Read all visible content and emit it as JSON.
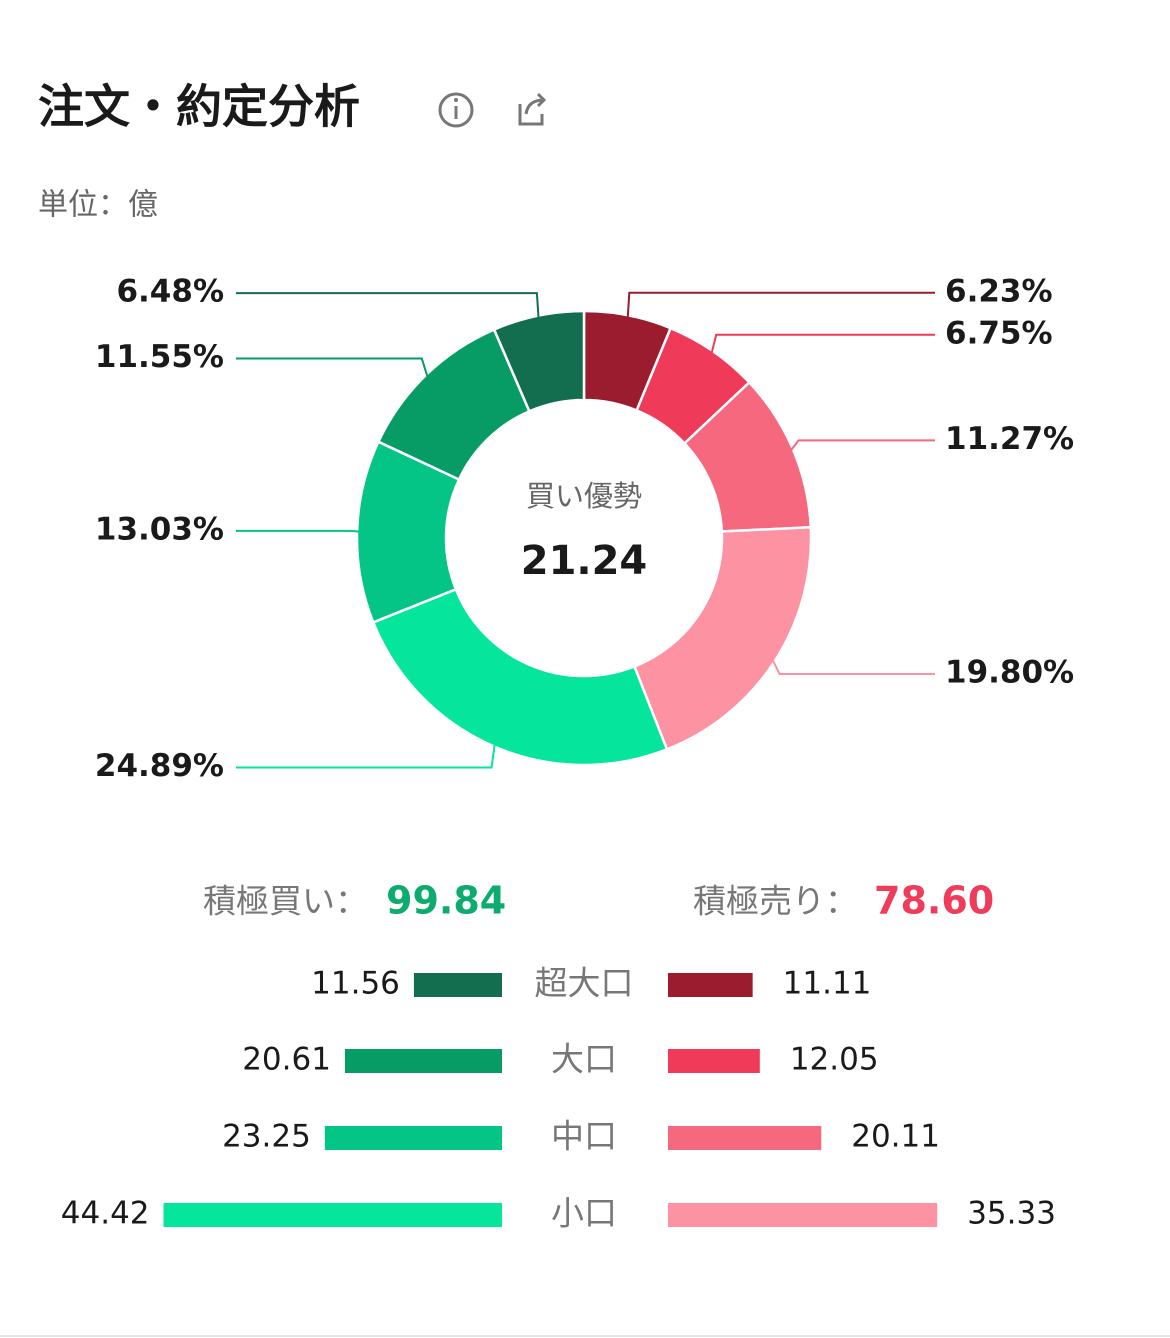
{
  "header": {
    "title": "注文・約定分析",
    "unit": "単位：億"
  },
  "chart_data": [
    {
      "type": "donut",
      "center_label": "買い優勢",
      "center_value": 21.24,
      "values": [
        6.23,
        6.75,
        11.27,
        19.8,
        24.89,
        13.03,
        11.55,
        6.48
      ],
      "value_labels": [
        "6.23%",
        "6.75%",
        "11.27%",
        "19.80%",
        "24.89%",
        "13.03%",
        "11.55%",
        "6.48%"
      ],
      "colors": [
        "#9a1c2e",
        "#ef3a5a",
        "#f5687e",
        "#fd92a2",
        "#05e59b",
        "#04c585",
        "#079b65",
        "#136e4f"
      ]
    },
    {
      "type": "butterfly",
      "categories": [
        "超大口",
        "大口",
        "中口",
        "小口"
      ],
      "series": [
        {
          "name": "積極買い：",
          "total": 99.84,
          "color": "#0bac6e",
          "colors": [
            "#136e4f",
            "#079b65",
            "#04c585",
            "#05e59b"
          ],
          "values": [
            11.56,
            20.61,
            23.25,
            44.42
          ]
        },
        {
          "name": "積極売り：",
          "total": {
            "value": 78.6,
            "label": "78.60"
          },
          "color": "#f03c5b",
          "colors": [
            "#9a1c2e",
            "#ef3a5a",
            "#f5687e",
            "#fd92a2"
          ],
          "values": [
            11.11,
            12.05,
            20.11,
            35.33
          ]
        }
      ]
    }
  ]
}
